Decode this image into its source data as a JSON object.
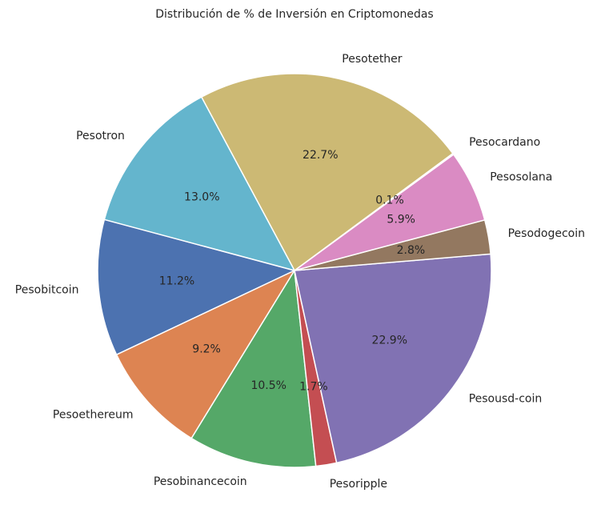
{
  "chart_data": {
    "type": "pie",
    "title": "Distribución de % de Inversión en Criptomonedas",
    "slices": [
      {
        "label": "Pesobitcoin",
        "value": 11.2,
        "pct_label": "11.2%",
        "color": "#4c72b0"
      },
      {
        "label": "Pesoethereum",
        "value": 9.2,
        "pct_label": "9.2%",
        "color": "#dd8452"
      },
      {
        "label": "Pesobinancecoin",
        "value": 10.5,
        "pct_label": "10.5%",
        "color": "#55a868"
      },
      {
        "label": "Pesoripple",
        "value": 1.7,
        "pct_label": "1.7%",
        "color": "#c44e52"
      },
      {
        "label": "Pesousd-coin",
        "value": 22.9,
        "pct_label": "22.9%",
        "color": "#8172b3"
      },
      {
        "label": "Pesodogecoin",
        "value": 2.8,
        "pct_label": "2.8%",
        "color": "#937860"
      },
      {
        "label": "Pesosolana",
        "value": 5.9,
        "pct_label": "5.9%",
        "color": "#da8bc3"
      },
      {
        "label": "Pesocardano",
        "value": 0.1,
        "pct_label": "0.1%",
        "color": "#8c8c8c"
      },
      {
        "label": "Pesotether",
        "value": 22.7,
        "pct_label": "22.7%",
        "color": "#ccb974"
      },
      {
        "label": "Pesotron",
        "value": 13.0,
        "pct_label": "13.0%",
        "color": "#64b5cd"
      }
    ]
  }
}
